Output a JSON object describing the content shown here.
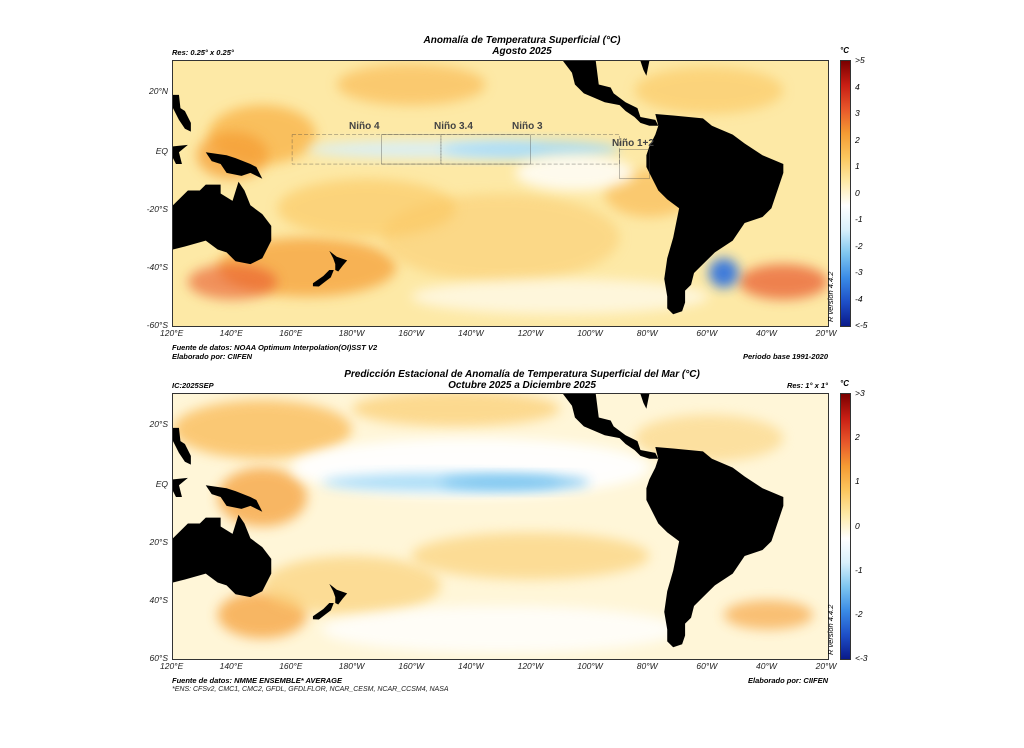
{
  "top_panel": {
    "title": "Anomalía de Temperatura Superficial (°C)",
    "subtitle": "Agosto 2025",
    "resolution": "Res: 0.25° x 0.25°",
    "unit": "°C",
    "lat_labels": [
      "20°N",
      "EQ",
      "-20°S",
      "-40°S",
      "-60°S"
    ],
    "lon_labels": [
      "120°E",
      "140°E",
      "160°E",
      "180°W",
      "160°W",
      "140°W",
      "120°W",
      "100°W",
      "80°W",
      "60°W",
      "40°W",
      "20°W"
    ],
    "regions": [
      "Niño 4",
      "Niño 3.4",
      "Niño 3",
      "Niño 1+2"
    ],
    "colorbar_labels": [
      ">5",
      "4",
      "3",
      "2",
      "1",
      "0",
      "-1",
      "-2",
      "-3",
      "-4",
      "<-5"
    ],
    "source": "Fuente de datos: NOAA Optimum Interpolation(OI)SST V2",
    "made_by": "Elaborado por: CIIFEN",
    "base_period": "Periodo base 1991-2020",
    "version": "R version 4.4.2"
  },
  "bottom_panel": {
    "title": "Predicción Estacional de Anomalía de Temperatura Superficial del Mar (°C)",
    "subtitle": "Octubre 2025 a Diciembre 2025",
    "ic": "IC:2025SEP",
    "resolution": "Res: 1° x 1°",
    "unit": "°C",
    "lat_labels": [
      "20°S",
      "EQ",
      "20°S",
      "40°S",
      "60°S"
    ],
    "lon_labels": [
      "120°E",
      "140°E",
      "160°E",
      "180°W",
      "160°W",
      "140°W",
      "120°W",
      "100°W",
      "80°W",
      "60°W",
      "40°W",
      "20°W"
    ],
    "colorbar_labels": [
      ">3",
      "2",
      "1",
      "0",
      "-1",
      "-2",
      "<-3"
    ],
    "source": "Fuente de datos: NMME ENSEMBLE* AVERAGE",
    "ensemble_note": "*ENS: CFSv2, CMC1, CMC2, GFDL, GFDLFLOR, NCAR_CESM, NCAR_CCSM4, NASA",
    "made_by": "Elaborado por: CIIFEN",
    "version": "R version 4.4.2"
  },
  "colors": {
    "land": "#000000",
    "warm": "#f5a623",
    "cool": "#5bb8ef",
    "neutral": "#ffffff"
  }
}
